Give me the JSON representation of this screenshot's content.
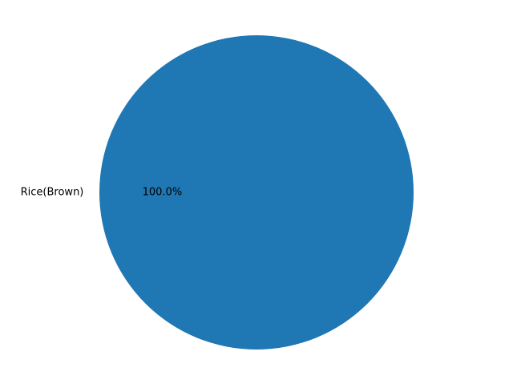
{
  "chart_data": {
    "type": "pie",
    "title": "",
    "slices": [
      {
        "label": "Rice(Brown)",
        "value": 100.0,
        "percent_label": "100.0%",
        "color": "#1f77b4"
      }
    ],
    "start_angle_deg": 0,
    "autopct": true
  }
}
